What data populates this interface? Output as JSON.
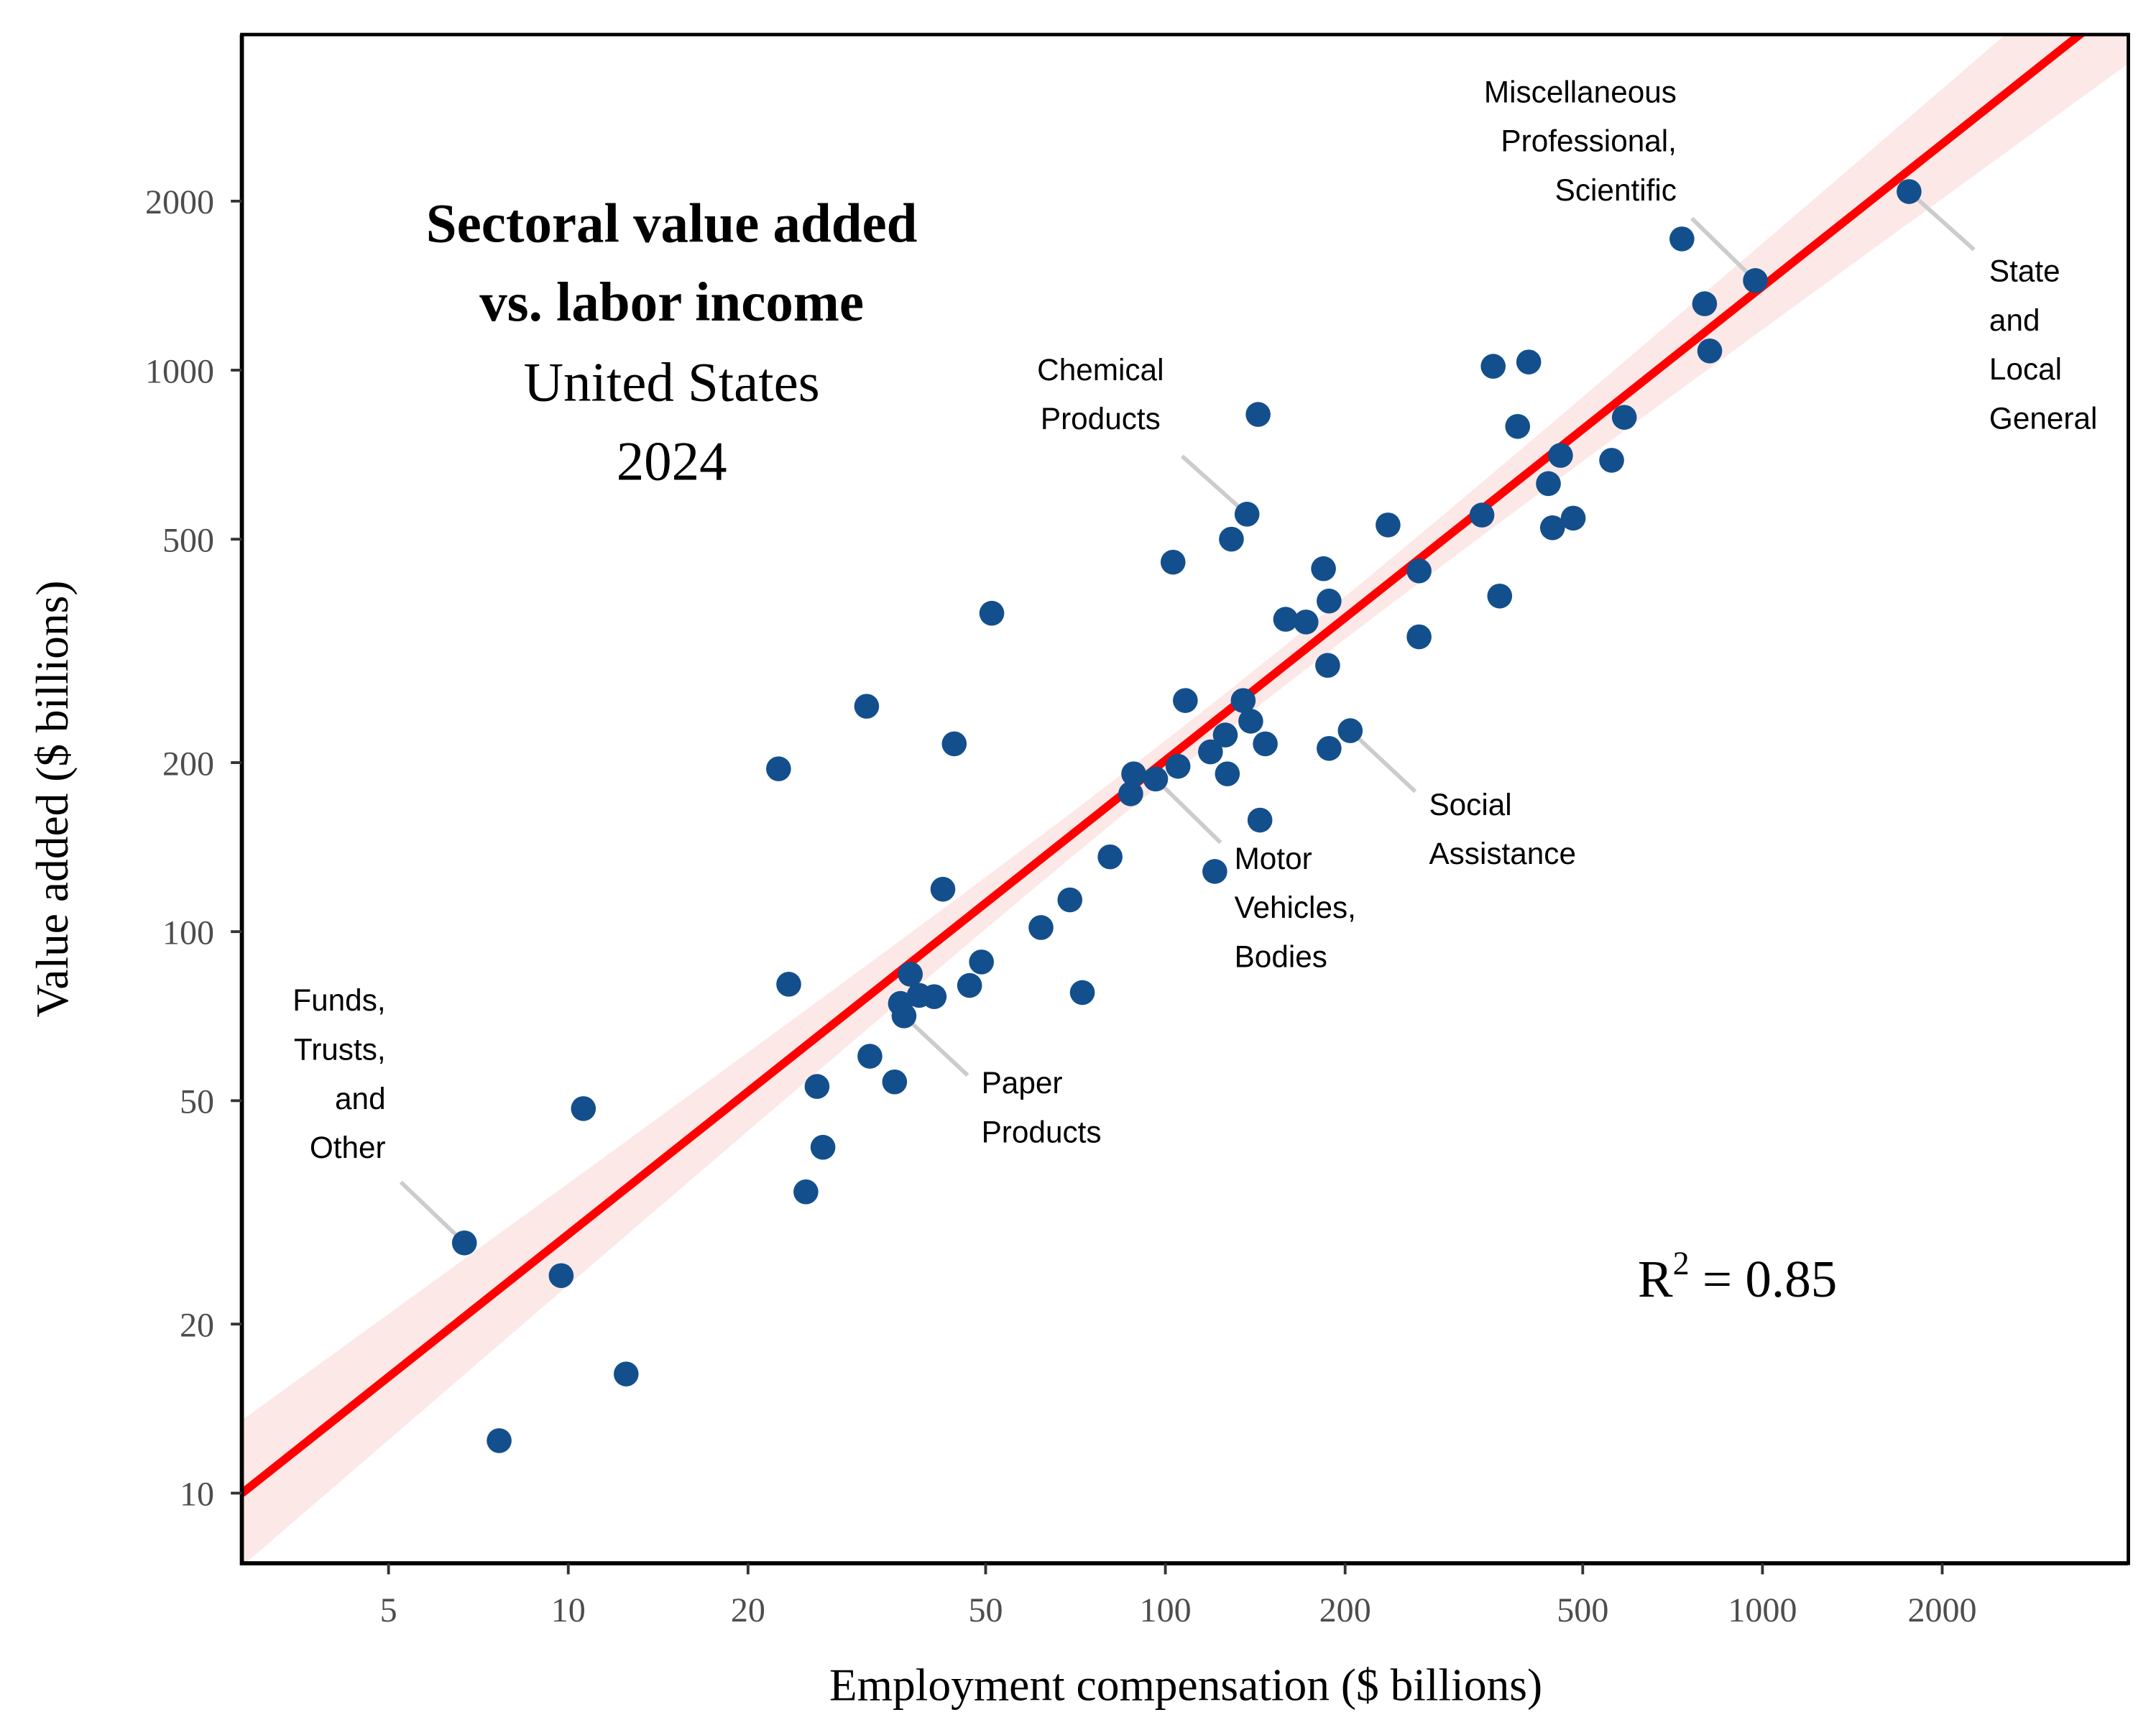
{
  "chart_data": {
    "type": "scatter",
    "title": [
      "Sectoral value added",
      "vs. labor income"
    ],
    "subtitle": [
      "United States",
      "2024"
    ],
    "xlabel": "Employment compensation ($ billions)",
    "ylabel": "Value added ($ billions)",
    "xscale": "log",
    "yscale": "log",
    "xlim": [
      2.84,
      4100
    ],
    "ylim": [
      7.5,
      3960
    ],
    "xticks": [
      5,
      10,
      20,
      50,
      100,
      200,
      500,
      1000,
      2000
    ],
    "yticks": [
      10,
      20,
      50,
      100,
      200,
      500,
      1000,
      2000
    ],
    "grid": false,
    "r2_label": {
      "prefix": "R",
      "sup": "2",
      "text": " = 0.85"
    },
    "fit": {
      "type": "power",
      "coef": 4.14,
      "exponent": 0.844,
      "color": "#ff0000",
      "band_color": "#fde8e8"
    },
    "point_color": "#134f8c",
    "points": [
      [
        6.7,
        27.9
      ],
      [
        7.66,
        12.4
      ],
      [
        9.73,
        24.4
      ],
      [
        10.6,
        48.4
      ],
      [
        12.5,
        16.3
      ],
      [
        22.5,
        195
      ],
      [
        23.4,
        80.6
      ],
      [
        25.0,
        34.4
      ],
      [
        26.1,
        53
      ],
      [
        26.7,
        41.3
      ],
      [
        31.6,
        252
      ],
      [
        32.0,
        60
      ],
      [
        35.2,
        54
      ],
      [
        36,
        74.5
      ],
      [
        36.5,
        70.8
      ],
      [
        37.4,
        84
      ],
      [
        38.7,
        77
      ],
      [
        41,
        76.6
      ],
      [
        42.4,
        119
      ],
      [
        44.3,
        216
      ],
      [
        47,
        80.2
      ],
      [
        49.2,
        88.3
      ],
      [
        51.2,
        369
      ],
      [
        61.9,
        101.7
      ],
      [
        69.2,
        113.9
      ],
      [
        72.6,
        77.9
      ],
      [
        80.8,
        135.9
      ],
      [
        87.5,
        176
      ],
      [
        88.5,
        191
      ],
      [
        96.3,
        187
      ],
      [
        103,
        455
      ],
      [
        105,
        197
      ],
      [
        108,
        258
      ],
      [
        119,
        209
      ],
      [
        121,
        128
      ],
      [
        126,
        224
      ],
      [
        127,
        191
      ],
      [
        129,
        500
      ],
      [
        135,
        258
      ],
      [
        137,
        554
      ],
      [
        139,
        237
      ],
      [
        143,
        834
      ],
      [
        144,
        158
      ],
      [
        147,
        216
      ],
      [
        159,
        360
      ],
      [
        172,
        356
      ],
      [
        184,
        443
      ],
      [
        187,
        298
      ],
      [
        188,
        212
      ],
      [
        188,
        388
      ],
      [
        204,
        228
      ],
      [
        236,
        530
      ],
      [
        266,
        439
      ],
      [
        266,
        335
      ],
      [
        339,
        552
      ],
      [
        354,
        1016
      ],
      [
        363,
        396
      ],
      [
        389,
        794
      ],
      [
        406,
        1034
      ],
      [
        438,
        628
      ],
      [
        445,
        524
      ],
      [
        459,
        705
      ],
      [
        482,
        545
      ],
      [
        559,
        691
      ],
      [
        587,
        824
      ],
      [
        733,
        1713
      ],
      [
        800,
        1313
      ],
      [
        816,
        1082
      ],
      [
        973,
        1444
      ],
      [
        1760,
        2080
      ]
    ],
    "annotations": [
      {
        "key": "funds",
        "x": 6.7,
        "y": 27.9,
        "lines": [
          "Funds,",
          "Trusts,",
          "and",
          "Other"
        ]
      },
      {
        "key": "paper",
        "x": 36.5,
        "y": 70.8,
        "lines": [
          "Paper",
          "Products"
        ]
      },
      {
        "key": "motor",
        "x": 96.3,
        "y": 187,
        "lines": [
          "Motor",
          "Vehicles,",
          "Bodies"
        ]
      },
      {
        "key": "social",
        "x": 204,
        "y": 228,
        "lines": [
          "Social",
          "Assistance"
        ]
      },
      {
        "key": "chemical",
        "x": 137,
        "y": 554,
        "lines": [
          "Chemical",
          "Products"
        ]
      },
      {
        "key": "misc",
        "x": 973,
        "y": 1444,
        "lines": [
          "Miscellaneous",
          "Professional,",
          "Scientific"
        ]
      },
      {
        "key": "state",
        "x": 1760,
        "y": 2080,
        "lines": [
          "State",
          "and",
          "Local",
          "General"
        ]
      }
    ]
  }
}
